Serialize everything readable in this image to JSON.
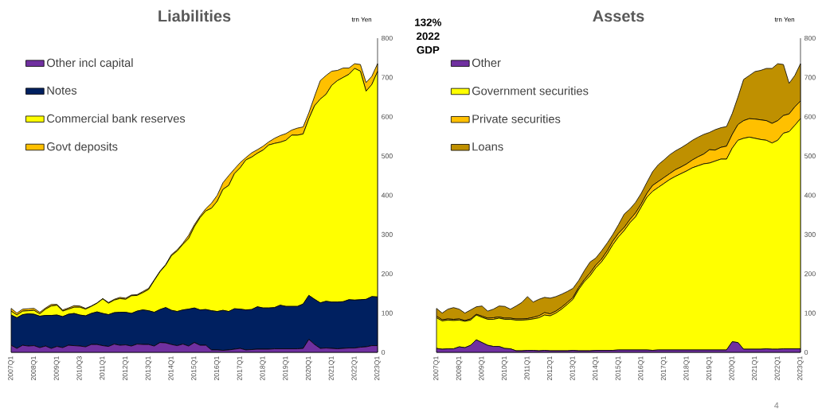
{
  "chart_data": [
    {
      "type": "area",
      "title": "Liabilities",
      "ylabel": "trn Yen",
      "stacked": true,
      "legend": "top left",
      "categories": [
        "2007Q1",
        null,
        null,
        null,
        "2008Q1",
        null,
        null,
        null,
        "2009Q1",
        null,
        null,
        null,
        "2010Q3",
        null,
        null,
        null,
        "2011Q1",
        null,
        null,
        null,
        "2012Q1",
        null,
        null,
        null,
        "2013Q1",
        null,
        null,
        null,
        "2014Q1",
        null,
        null,
        null,
        "2015Q1",
        null,
        null,
        null,
        "2016Q1",
        null,
        null,
        null,
        "2017Q1",
        null,
        null,
        null,
        "2018Q1",
        null,
        null,
        null,
        "2019Q1",
        null,
        null,
        null,
        "2020Q1",
        null,
        null,
        null,
        "2021Q1",
        null,
        null,
        null,
        "2022Q1",
        null,
        null,
        null,
        "2023Q1"
      ],
      "ylim": [
        0,
        800
      ],
      "yticks": [
        0,
        100,
        200,
        300,
        400,
        500,
        600,
        700,
        800
      ],
      "annotations": [
        "132% 2022 GDP"
      ],
      "series": [
        {
          "name": "Other incl capital",
          "color": "#7030a0",
          "values": [
            18,
            10,
            18,
            16,
            17,
            12,
            16,
            10,
            15,
            12,
            18,
            17,
            16,
            14,
            20,
            20,
            17,
            15,
            21,
            18,
            19,
            16,
            21,
            20,
            20,
            16,
            25,
            24,
            20,
            17,
            21,
            16,
            25,
            18,
            18,
            6,
            6,
            5,
            6,
            8,
            10,
            6,
            7,
            8,
            8,
            8,
            9,
            9,
            9,
            9,
            9,
            10,
            33,
            20,
            10,
            11,
            10,
            9,
            10,
            11,
            11,
            13,
            14,
            17,
            17
          ]
        },
        {
          "name": "Notes",
          "color": "#002060",
          "values": [
            77,
            78,
            78,
            82,
            80,
            80,
            78,
            84,
            80,
            79,
            79,
            82,
            79,
            79,
            79,
            83,
            82,
            81,
            80,
            84,
            83,
            83,
            84,
            88,
            86,
            86,
            84,
            90,
            87,
            87,
            87,
            94,
            88,
            90,
            91,
            100,
            98,
            102,
            98,
            103,
            100,
            102,
            102,
            108,
            105,
            105,
            105,
            111,
            108,
            108,
            108,
            113,
            112,
            115,
            116,
            119,
            118,
            119,
            119,
            123,
            122,
            121,
            121,
            125,
            124
          ]
        },
        {
          "name": "Commercial bank reserves",
          "color": "#ffff00",
          "values": [
            10,
            7,
            9,
            8,
            10,
            6,
            16,
            24,
            25,
            14,
            13,
            16,
            20,
            17,
            18,
            22,
            37,
            29,
            32,
            35,
            33,
            45,
            40,
            44,
            54,
            81,
            96,
            108,
            139,
            154,
            167,
            180,
            207,
            235,
            251,
            261,
            281,
            308,
            321,
            344,
            360,
            382,
            388,
            391,
            402,
            415,
            418,
            415,
            423,
            436,
            436,
            433,
            450,
            493,
            519,
            527,
            552,
            564,
            571,
            574,
            590,
            582,
            530,
            540,
            574
          ]
        },
        {
          "name": "Govt deposits",
          "color": "#ffc000",
          "values": [
            7,
            5,
            5,
            5,
            5,
            4,
            3,
            4,
            2,
            3,
            3,
            4,
            3,
            2,
            1,
            1,
            1,
            2,
            2,
            3,
            3,
            2,
            2,
            3,
            3,
            2,
            2,
            2,
            3,
            3,
            3,
            8,
            5,
            4,
            6,
            13,
            15,
            17,
            25,
            12,
            13,
            6,
            11,
            9,
            10,
            8,
            13,
            17,
            17,
            13,
            18,
            18,
            15,
            24,
            47,
            48,
            36,
            26,
            24,
            16,
            12,
            17,
            22,
            21,
            20
          ]
        }
      ]
    },
    {
      "type": "area",
      "title": "Assets",
      "ylabel": "trn Yen",
      "stacked": true,
      "legend": "top left",
      "categories": [
        "2007Q1",
        null,
        null,
        null,
        "2008Q1",
        null,
        null,
        null,
        "2009Q1",
        null,
        null,
        null,
        "2010Q1",
        null,
        null,
        null,
        "2011Q1",
        null,
        null,
        null,
        "2012Q1",
        null,
        null,
        null,
        "2013Q1",
        null,
        null,
        null,
        "2014Q1",
        null,
        null,
        null,
        "2015Q1",
        null,
        null,
        null,
        "2016Q1",
        null,
        null,
        null,
        "2017Q1",
        null,
        null,
        null,
        "2018Q1",
        null,
        null,
        null,
        "2019Q1",
        null,
        null,
        null,
        "2020Q1",
        null,
        null,
        null,
        "2021Q1",
        null,
        null,
        null,
        "2022Q1",
        null,
        null,
        null,
        "2023Q1"
      ],
      "ylim": [
        0,
        800
      ],
      "yticks": [
        0,
        100,
        200,
        300,
        400,
        500,
        600,
        700,
        800
      ],
      "annotations": [
        "4"
      ],
      "series": [
        {
          "name": "Other",
          "color": "#7030a0",
          "values": [
            10,
            8,
            9,
            9,
            14,
            12,
            18,
            32,
            25,
            18,
            15,
            15,
            10,
            9,
            4,
            4,
            5,
            5,
            4,
            5,
            4,
            4,
            4,
            4,
            5,
            4,
            4,
            4,
            5,
            5,
            5,
            5,
            6,
            6,
            6,
            6,
            6,
            6,
            5,
            6,
            6,
            6,
            6,
            6,
            6,
            6,
            6,
            6,
            6,
            6,
            6,
            6,
            27,
            25,
            8,
            8,
            8,
            8,
            9,
            8,
            8,
            9,
            9,
            9,
            9
          ]
        },
        {
          "name": "Government securities",
          "color": "#ffff00",
          "values": [
            78,
            72,
            73,
            72,
            68,
            67,
            64,
            63,
            64,
            66,
            69,
            72,
            74,
            75,
            78,
            78,
            78,
            80,
            84,
            90,
            89,
            96,
            106,
            118,
            130,
            156,
            176,
            191,
            210,
            225,
            245,
            269,
            288,
            304,
            324,
            339,
            364,
            389,
            405,
            414,
            424,
            434,
            442,
            449,
            456,
            464,
            469,
            474,
            476,
            481,
            486,
            486,
            493,
            515,
            537,
            540,
            537,
            534,
            531,
            525,
            532,
            549,
            553,
            569,
            586
          ]
        },
        {
          "name": "Private securities",
          "color": "#ffc000",
          "values": [
            4,
            3,
            3,
            3,
            3,
            2,
            3,
            2,
            3,
            3,
            4,
            3,
            3,
            3,
            3,
            3,
            3,
            4,
            5,
            6,
            5,
            5,
            5,
            5,
            5,
            5,
            5,
            7,
            7,
            7,
            8,
            9,
            9,
            8,
            8,
            10,
            8,
            10,
            15,
            15,
            15,
            15,
            17,
            17,
            18,
            20,
            23,
            25,
            34,
            28,
            30,
            33,
            35,
            40,
            45,
            47,
            49,
            50,
            50,
            50,
            50,
            45,
            45,
            47,
            45
          ]
        },
        {
          "name": "Loans",
          "color": "#bf9000",
          "values": [
            20,
            17,
            25,
            30,
            25,
            19,
            23,
            19,
            26,
            18,
            22,
            28,
            30,
            23,
            33,
            42,
            56,
            39,
            42,
            39,
            40,
            37,
            33,
            28,
            23,
            18,
            23,
            28,
            18,
            21,
            20,
            17,
            22,
            34,
            27,
            27,
            27,
            28,
            35,
            43,
            45,
            48,
            48,
            49,
            50,
            50,
            50,
            50,
            44,
            52,
            50,
            50,
            53,
            70,
            105,
            110,
            121,
            126,
            133,
            140,
            145,
            130,
            78,
            80,
            95
          ]
        }
      ]
    }
  ]
}
